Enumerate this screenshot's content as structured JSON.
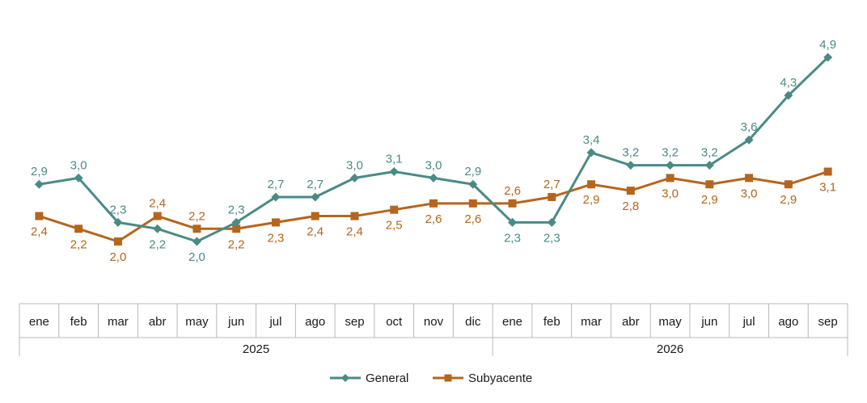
{
  "chart_data": {
    "type": "line",
    "title": "",
    "xlabel": "",
    "ylabel": "",
    "x": [
      "ene",
      "feb",
      "mar",
      "abr",
      "may",
      "jun",
      "jul",
      "ago",
      "sep",
      "oct",
      "nov",
      "dic",
      "ene",
      "feb",
      "mar",
      "abr",
      "may",
      "jun",
      "jul",
      "ago",
      "sep"
    ],
    "year_groups": [
      {
        "label": "2025",
        "count": 12
      },
      {
        "label": "2026",
        "count": 9
      }
    ],
    "ylim": [
      1.4,
      5.0
    ],
    "grid": false,
    "legend": "bottom",
    "series": [
      {
        "name": "General",
        "color": "#4a8a85",
        "marker": "diamond",
        "values": [
          2.9,
          3.0,
          2.3,
          2.2,
          2.0,
          2.3,
          2.7,
          2.7,
          3.0,
          3.1,
          3.0,
          2.9,
          2.3,
          2.3,
          3.4,
          3.2,
          3.2,
          3.2,
          3.6,
          4.3,
          4.9
        ],
        "labels": [
          "2,9",
          "3,0",
          "2,3",
          "2,2",
          "2,0",
          "2,3",
          "2,7",
          "2,7",
          "3,0",
          "3,1",
          "3,0",
          "2,9",
          "2,3",
          "2,3",
          "3,4",
          "3,2",
          "3,2",
          "3,2",
          "3,6",
          "4,3",
          "4,9"
        ],
        "label_side": [
          "above",
          "above",
          "above",
          "below",
          "below",
          "above",
          "above",
          "above",
          "above",
          "above",
          "above",
          "above",
          "below",
          "below",
          "above",
          "above",
          "above",
          "above",
          "above",
          "above",
          "above"
        ]
      },
      {
        "name": "Subyacente",
        "color": "#b5651d",
        "marker": "square",
        "values": [
          2.4,
          2.2,
          2.0,
          2.4,
          2.2,
          2.2,
          2.3,
          2.4,
          2.4,
          2.5,
          2.6,
          2.6,
          2.6,
          2.7,
          2.9,
          2.8,
          3.0,
          2.9,
          3.0,
          2.9,
          3.1
        ],
        "labels": [
          "2,4",
          "2,2",
          "2,0",
          "2,4",
          "2,2",
          "2,2",
          "2,3",
          "2,4",
          "2,4",
          "2,5",
          "2,6",
          "2,6",
          "2,6",
          "2,7",
          "2,9",
          "2,8",
          "3,0",
          "2,9",
          "3,0",
          "2,9",
          "3,1"
        ],
        "label_side": [
          "below",
          "below",
          "below",
          "above",
          "above",
          "below",
          "below",
          "below",
          "below",
          "below",
          "below",
          "below",
          "above",
          "above",
          "below",
          "below",
          "below",
          "below",
          "below",
          "below",
          "below"
        ]
      }
    ]
  }
}
